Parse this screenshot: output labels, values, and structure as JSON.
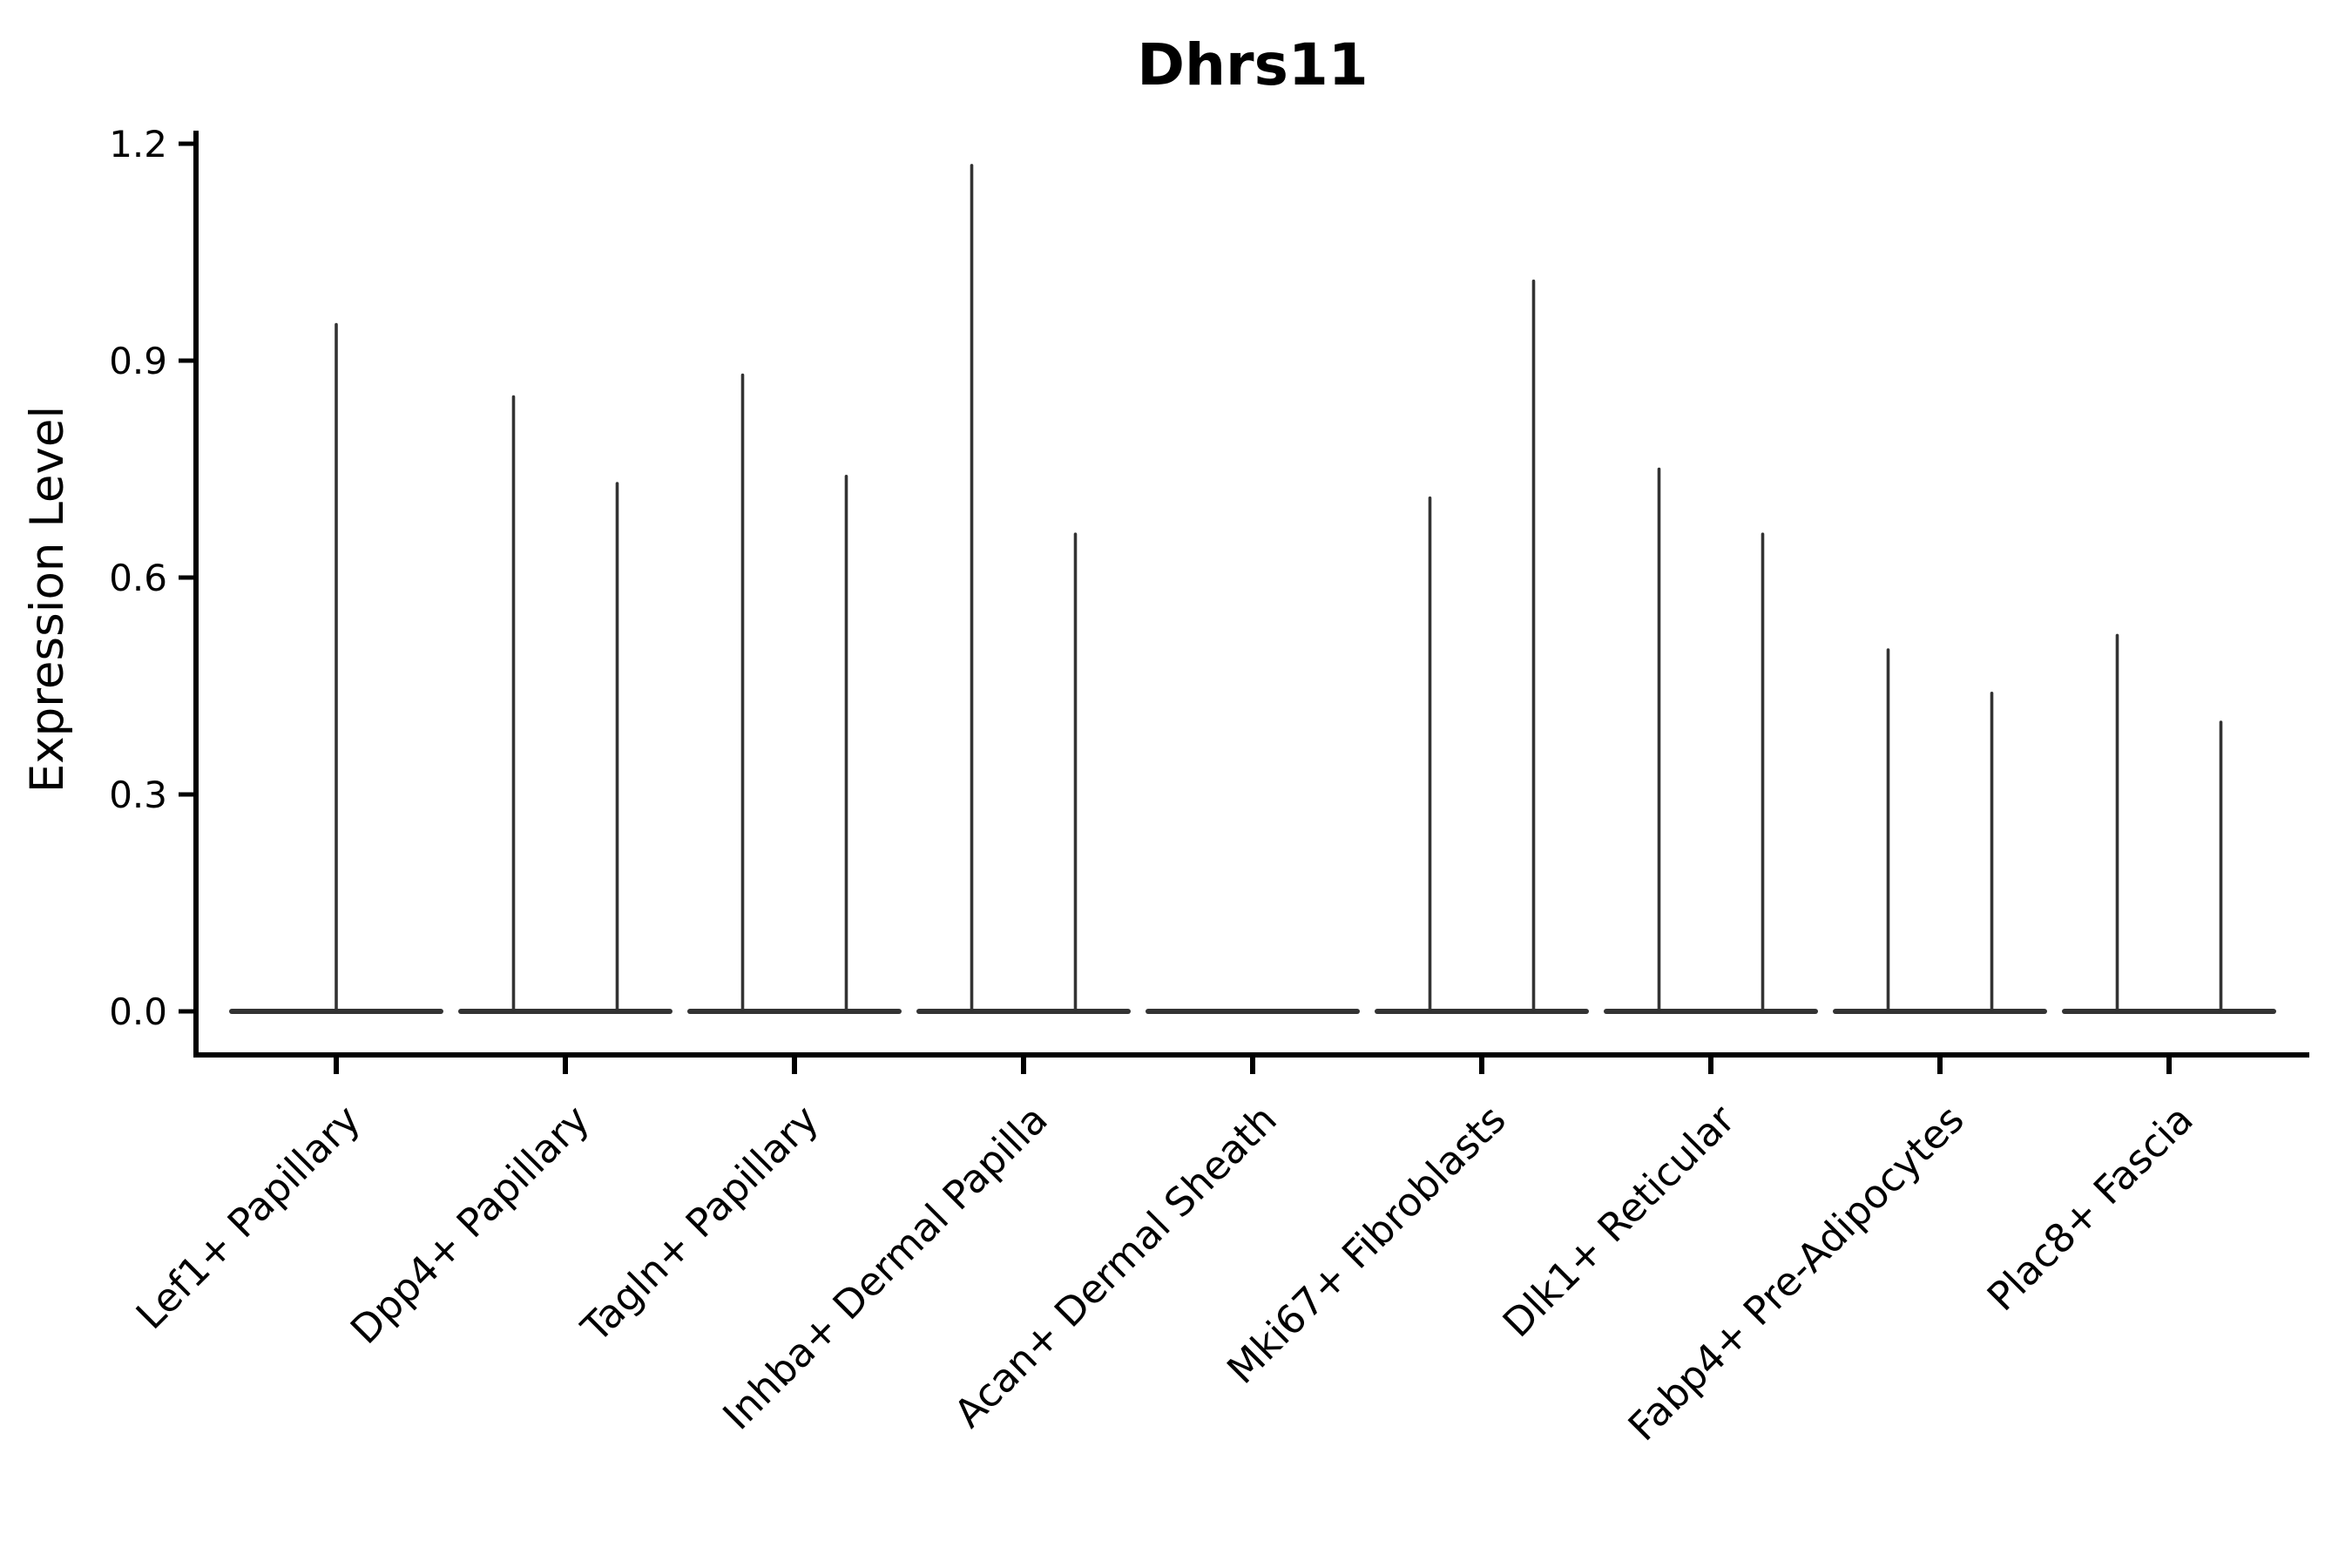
{
  "chart_data": {
    "type": "violin",
    "title": "Dhrs11",
    "ylabel": "Expression Level",
    "xlabel": "",
    "grid": false,
    "legend_position": "none",
    "ylim": [
      -0.07,
      1.23
    ],
    "ytick_values": [
      0.0,
      0.3,
      0.6,
      0.9,
      1.2
    ],
    "ytick_labels": [
      "0.0",
      "0.3",
      "0.6",
      "0.9",
      "1.2"
    ],
    "categories": [
      "Lef1+ Papillary",
      "Dpp4+ Papillary",
      "Tagln+ Papillary",
      "Inhba+ Dermal Papilla",
      "Acan+ Dermal Sheath",
      "Mki67+ Fibroblasts",
      "Dlk1+ Reticular",
      "Fabp4+ Pre-Adipocytes",
      "Plac8+ Fascia"
    ],
    "series": [
      {
        "category": "Lef1+ Papillary",
        "violins": [
          {
            "position": "center",
            "baseline": 0.0,
            "max": 0.95
          }
        ]
      },
      {
        "category": "Dpp4+ Papillary",
        "violins": [
          {
            "position": "left",
            "baseline": 0.0,
            "max": 0.85
          },
          {
            "position": "right",
            "baseline": 0.0,
            "max": 0.73
          }
        ]
      },
      {
        "category": "Tagln+ Papillary",
        "violins": [
          {
            "position": "left",
            "baseline": 0.0,
            "max": 0.88
          },
          {
            "position": "right",
            "baseline": 0.0,
            "max": 0.74
          }
        ]
      },
      {
        "category": "Inhba+ Dermal Papilla",
        "violins": [
          {
            "position": "left",
            "baseline": 0.0,
            "max": 1.17
          },
          {
            "position": "right",
            "baseline": 0.0,
            "max": 0.66
          }
        ]
      },
      {
        "category": "Acan+ Dermal Sheath",
        "violins": [
          {
            "position": "left",
            "baseline": 0.0,
            "max": 0.0
          },
          {
            "position": "right",
            "baseline": 0.0,
            "max": 0.0
          }
        ]
      },
      {
        "category": "Mki67+ Fibroblasts",
        "violins": [
          {
            "position": "left",
            "baseline": 0.0,
            "max": 0.71
          },
          {
            "position": "right",
            "baseline": 0.0,
            "max": 1.01
          }
        ]
      },
      {
        "category": "Dlk1+ Reticular",
        "violins": [
          {
            "position": "left",
            "baseline": 0.0,
            "max": 0.75
          },
          {
            "position": "right",
            "baseline": 0.0,
            "max": 0.66
          }
        ]
      },
      {
        "category": "Fabp4+ Pre-Adipocytes",
        "violins": [
          {
            "position": "left",
            "baseline": 0.0,
            "max": 0.5
          },
          {
            "position": "right",
            "baseline": 0.0,
            "max": 0.44
          }
        ]
      },
      {
        "category": "Plac8+ Fascia",
        "violins": [
          {
            "position": "left",
            "baseline": 0.0,
            "max": 0.52
          },
          {
            "position": "right",
            "baseline": 0.0,
            "max": 0.4
          }
        ]
      }
    ]
  },
  "colors": {
    "background": "#ffffff",
    "violin": "#333333",
    "axis": "#000000",
    "text": "#000000"
  }
}
